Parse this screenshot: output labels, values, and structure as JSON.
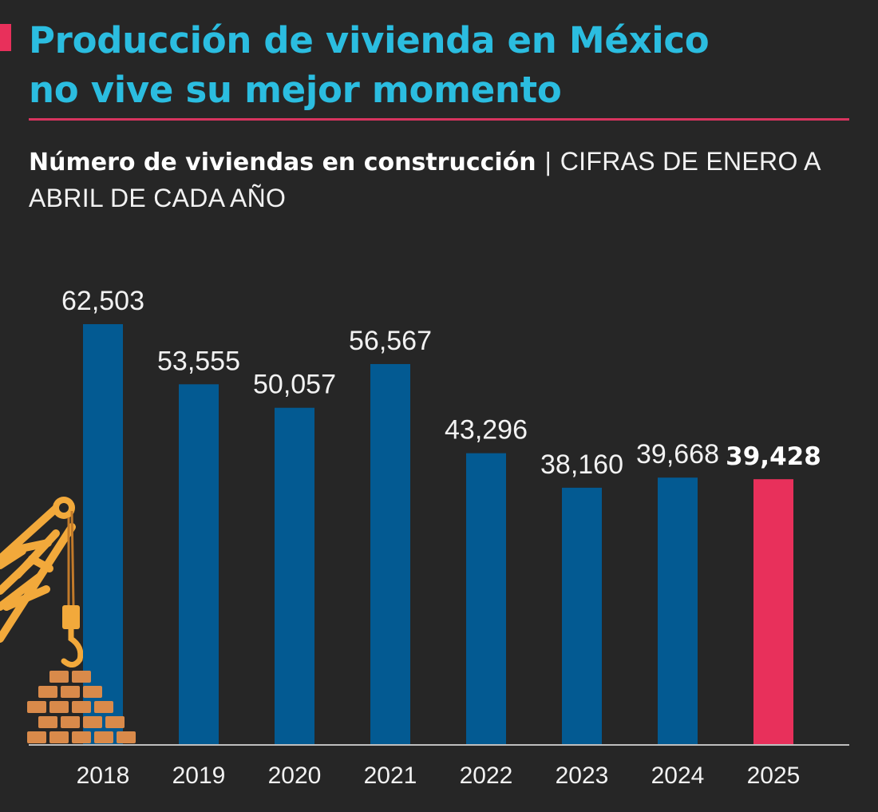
{
  "headline": {
    "line1": "Producción de vivienda en México",
    "line2": "no vive su mejor momento"
  },
  "subtitle": {
    "bold": "Número de viviendas en construcción",
    "separator": "|",
    "light": "CIFRAS DE ENERO A ABRIL DE CADA AÑO"
  },
  "colors": {
    "background": "#262626",
    "headline": "#2bbde0",
    "accent": "#e8305b",
    "bar": "#035a92",
    "highlight_bar": "#e8305b",
    "crane": "#f2a93b",
    "bricks": "#d98a4a"
  },
  "illustration": {
    "crane_icon": "crane-icon",
    "bricks_icon": "bricks-icon"
  },
  "chart_data": {
    "type": "bar",
    "title": "Número de viviendas en construcción",
    "subtitle": "CIFRAS DE ENERO A ABRIL DE CADA AÑO",
    "xlabel": "",
    "ylabel": "",
    "categories": [
      "2018",
      "2019",
      "2020",
      "2021",
      "2022",
      "2023",
      "2024",
      "2025"
    ],
    "values": [
      62503,
      53555,
      50057,
      56567,
      43296,
      38160,
      39668,
      39428
    ],
    "value_labels": [
      "62,503",
      "53,555",
      "50,057",
      "56,567",
      "43,296",
      "38,160",
      "39,668",
      "39,428"
    ],
    "highlight_index": 7,
    "ylim": [
      0,
      62503
    ],
    "grid": false
  }
}
